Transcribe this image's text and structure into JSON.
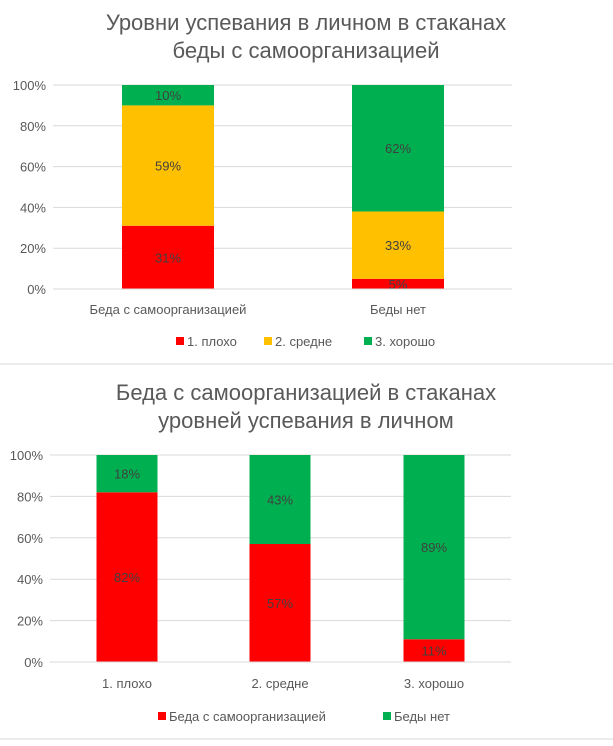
{
  "chart_data": [
    {
      "type": "bar",
      "stacked": "percent",
      "title": [
        "Уровни успевания в личном в стаканах",
        "беды с самоорганизацией"
      ],
      "categories": [
        "Беда с самоорганизацией",
        "Беды нет"
      ],
      "series": [
        {
          "name": "1. плохо",
          "color": "#FF0000",
          "values": [
            31,
            5
          ],
          "labels": [
            "31%",
            "5%"
          ]
        },
        {
          "name": "2. средне",
          "color": "#FFC000",
          "values": [
            59,
            33
          ],
          "labels": [
            "59%",
            "33%"
          ]
        },
        {
          "name": "3. хорошо",
          "color": "#00B050",
          "values": [
            10,
            62
          ],
          "labels": [
            "10%",
            "62%"
          ]
        }
      ],
      "yticks": [
        "0%",
        "20%",
        "40%",
        "60%",
        "80%",
        "100%"
      ],
      "ylim": [
        0,
        100
      ],
      "grid": true,
      "legend": "bottom"
    },
    {
      "type": "bar",
      "stacked": "percent",
      "title": [
        "Беда с самоорганизацией в стаканах",
        "уровней успевания в личном"
      ],
      "categories": [
        "1. плохо",
        "2. средне",
        "3. хорошо"
      ],
      "series": [
        {
          "name": "Беда с самоорганизацией",
          "color": "#FF0000",
          "values": [
            82,
            57,
            11
          ],
          "labels": [
            "82%",
            "57%",
            "11%"
          ]
        },
        {
          "name": "Беды нет",
          "color": "#00B050",
          "values": [
            18,
            43,
            89
          ],
          "labels": [
            "18%",
            "43%",
            "89%"
          ]
        }
      ],
      "yticks": [
        "0%",
        "20%",
        "40%",
        "60%",
        "80%",
        "100%"
      ],
      "ylim": [
        0,
        100
      ],
      "grid": true,
      "legend": "bottom"
    }
  ]
}
